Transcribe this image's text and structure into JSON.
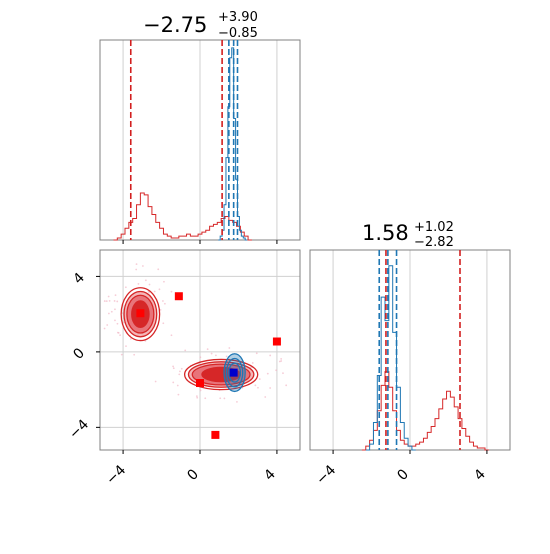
{
  "colors": {
    "red": "#d62728",
    "red_dashed": "#d21f1f",
    "blue": "#1f77b4",
    "fill_dark": "#d62728",
    "fill_mid": "#e8747a",
    "fill_light": "#f4b6b8",
    "grid": "#d0d0d0",
    "frame": "#808080",
    "marker_blue": "#0000cc"
  },
  "chart_data": [
    {
      "id": "hist-x",
      "type": "histogram",
      "title_main": "−2.75",
      "title_sup": "+3.90",
      "title_sub": "−0.85",
      "xlim": [
        -5.2,
        5.2
      ],
      "xticks": [
        -4,
        0,
        4
      ],
      "red_vlines": [
        -3.6,
        1.15
      ],
      "blue_vlines": [
        1.5,
        1.75,
        1.95
      ],
      "red_hist": {
        "x": [
          -4.4,
          -4.2,
          -4.0,
          -3.8,
          -3.6,
          -3.4,
          -3.2,
          -3.0,
          -2.8,
          -2.6,
          -2.4,
          -2.2,
          -2.0,
          -1.8,
          -1.6,
          -1.4,
          -1.2,
          -1.0,
          -0.8,
          -0.6,
          -0.4,
          -0.2,
          0.0,
          0.2,
          0.4,
          0.6,
          0.8,
          1.0,
          1.2,
          1.4,
          1.6,
          1.8,
          2.0,
          2.2,
          2.4,
          2.6
        ],
        "counts": [
          0,
          0.01,
          0.03,
          0.06,
          0.09,
          0.11,
          0.18,
          0.24,
          0.23,
          0.17,
          0.13,
          0.09,
          0.06,
          0.03,
          0.02,
          0.01,
          0.01,
          0.02,
          0.02,
          0.03,
          0.02,
          0.02,
          0.03,
          0.04,
          0.05,
          0.07,
          0.08,
          0.09,
          0.11,
          0.12,
          0.1,
          0.09,
          0.07,
          0.04,
          0.02,
          0
        ]
      },
      "blue_hist": {
        "x": [
          1.0,
          1.1,
          1.2,
          1.3,
          1.4,
          1.5,
          1.6,
          1.7,
          1.8,
          1.9,
          2.0,
          2.1,
          2.2,
          2.3,
          2.4
        ],
        "counts": [
          0,
          0.02,
          0.05,
          0.18,
          0.42,
          0.68,
          0.93,
          0.98,
          0.62,
          0.31,
          0.12,
          0.05,
          0.02,
          0.01,
          0
        ]
      }
    },
    {
      "id": "hist-y",
      "type": "histogram",
      "title_main": "1.58",
      "title_sup": "+1.02",
      "title_sub": "−2.82",
      "xlim": [
        -5.2,
        5.2
      ],
      "xticks": [
        -4,
        0,
        4
      ],
      "red_vlines": [
        -1.25,
        2.6
      ],
      "blue_vlines": [
        -1.6,
        -1.15,
        -0.7
      ],
      "red_hist": {
        "x": [
          -2.4,
          -2.2,
          -2.0,
          -1.8,
          -1.6,
          -1.4,
          -1.2,
          -1.0,
          -0.8,
          -0.6,
          -0.4,
          -0.2,
          0.0,
          0.2,
          0.4,
          0.6,
          0.8,
          1.0,
          1.2,
          1.4,
          1.6,
          1.8,
          2.0,
          2.2,
          2.4,
          2.6,
          2.8,
          3.0,
          3.2,
          3.4,
          3.6,
          3.8,
          4.0
        ],
        "counts": [
          0,
          0.02,
          0.05,
          0.1,
          0.2,
          0.33,
          0.4,
          0.32,
          0.2,
          0.1,
          0.05,
          0.03,
          0.02,
          0.02,
          0.03,
          0.04,
          0.06,
          0.09,
          0.12,
          0.16,
          0.21,
          0.26,
          0.3,
          0.27,
          0.22,
          0.16,
          0.11,
          0.07,
          0.04,
          0.02,
          0.01,
          0.01,
          0
        ]
      },
      "blue_hist": {
        "x": [
          -2.2,
          -2.0,
          -1.8,
          -1.6,
          -1.4,
          -1.2,
          -1.0,
          -0.8,
          -0.6,
          -0.4,
          -0.2,
          0.0,
          0.2
        ],
        "counts": [
          0,
          0.03,
          0.14,
          0.38,
          0.78,
          0.66,
          0.94,
          0.6,
          0.32,
          0.14,
          0.06,
          0.02,
          0
        ]
      }
    },
    {
      "id": "scatter-2d",
      "type": "contour",
      "xlim": [
        -5.2,
        5.2
      ],
      "ylim": [
        -5.2,
        5.4
      ],
      "xticks": [
        -4,
        0,
        4
      ],
      "yticks": [
        -4,
        0,
        4
      ],
      "modes": [
        {
          "cx": -3.1,
          "cy": 2.0,
          "rx": [
            2.0,
            1.7,
            1.4,
            0.9
          ],
          "ry": [
            2.8,
            2.4,
            2.0,
            1.4
          ]
        },
        {
          "cx": 1.1,
          "cy": -1.2,
          "rx": [
            3.8,
            3.4,
            3.0,
            2.0
          ],
          "ry": [
            1.6,
            1.35,
            1.1,
            0.75
          ]
        }
      ],
      "blue_mode": {
        "cx": 1.8,
        "cy": -1.1,
        "rx": [
          0.55,
          0.42,
          0.3
        ],
        "ry": [
          1.0,
          0.75,
          0.5
        ]
      },
      "red_markers": [
        {
          "x": -3.1,
          "y": 2.05
        },
        {
          "x": -1.1,
          "y": 2.95
        },
        {
          "x": 4.0,
          "y": 0.55
        },
        {
          "x": 0.0,
          "y": -1.65
        },
        {
          "x": 0.8,
          "y": -4.4
        }
      ],
      "blue_marker": {
        "x": 1.75,
        "y": -1.1
      }
    }
  ]
}
